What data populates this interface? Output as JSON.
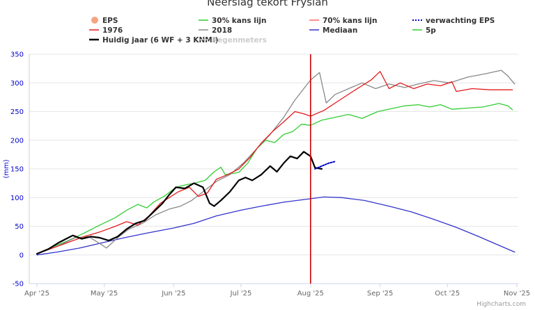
{
  "chart_data": {
    "type": "line",
    "title": "Neerslag tekort Fryslân",
    "ylabel": "(mm)",
    "xlabel": "",
    "ylim": [
      -50,
      350
    ],
    "yticks": [
      -50,
      0,
      50,
      100,
      150,
      200,
      250,
      300,
      350
    ],
    "xlim": [
      "2025-04-01",
      "2025-11-01"
    ],
    "xticks": [
      {
        "date": "2025-04-01",
        "label": "Apr '25"
      },
      {
        "date": "2025-05-01",
        "label": "May '25"
      },
      {
        "date": "2025-06-01",
        "label": "Jun '25"
      },
      {
        "date": "2025-07-01",
        "label": "Jul '25"
      },
      {
        "date": "2025-08-01",
        "label": "Aug '25"
      },
      {
        "date": "2025-09-01",
        "label": "Sep '25"
      },
      {
        "date": "2025-10-01",
        "label": "Oct '25"
      },
      {
        "date": "2025-11-01",
        "label": "Nov '25"
      }
    ],
    "grid": true,
    "legend_position": "top",
    "today_marker": {
      "date": "2025-08-01",
      "color": "#cc0000"
    },
    "series": [
      {
        "name": "EPS",
        "color": "#f4a582",
        "style": "marker",
        "values": []
      },
      {
        "name": "30% kans lijn",
        "color": "#33cc33",
        "style": "solid",
        "values": [
          [
            "2025-04-01",
            2
          ],
          [
            "2025-04-08",
            14
          ],
          [
            "2025-04-15",
            25
          ],
          [
            "2025-04-22",
            38
          ],
          [
            "2025-04-29",
            52
          ],
          [
            "2025-05-06",
            65
          ],
          [
            "2025-05-11",
            78
          ],
          [
            "2025-05-16",
            88
          ],
          [
            "2025-05-20",
            82
          ],
          [
            "2025-05-23",
            92
          ],
          [
            "2025-05-28",
            103
          ],
          [
            "2025-06-02",
            118
          ],
          [
            "2025-06-06",
            122
          ],
          [
            "2025-06-10",
            125
          ],
          [
            "2025-06-15",
            130
          ],
          [
            "2025-06-19",
            145
          ],
          [
            "2025-06-22",
            153
          ],
          [
            "2025-06-24",
            140
          ],
          [
            "2025-06-30",
            144
          ],
          [
            "2025-07-04",
            160
          ],
          [
            "2025-07-08",
            185
          ],
          [
            "2025-07-12",
            200
          ],
          [
            "2025-07-16",
            196
          ],
          [
            "2025-07-20",
            210
          ],
          [
            "2025-07-24",
            215
          ],
          [
            "2025-07-28",
            228
          ],
          [
            "2025-08-01",
            226
          ],
          [
            "2025-08-06",
            235
          ],
          [
            "2025-08-12",
            240
          ],
          [
            "2025-08-18",
            245
          ],
          [
            "2025-08-24",
            238
          ],
          [
            "2025-08-31",
            250
          ],
          [
            "2025-09-06",
            255
          ],
          [
            "2025-09-12",
            260
          ],
          [
            "2025-09-18",
            262
          ],
          [
            "2025-09-23",
            258
          ],
          [
            "2025-09-28",
            262
          ],
          [
            "2025-10-03",
            254
          ],
          [
            "2025-10-10",
            256
          ],
          [
            "2025-10-17",
            258
          ],
          [
            "2025-10-24",
            264
          ],
          [
            "2025-10-28",
            260
          ],
          [
            "2025-10-30",
            253
          ]
        ]
      },
      {
        "name": "70% kans lijn",
        "color": "#ff6666",
        "style": "solid",
        "values": []
      },
      {
        "name": "verwachting EPS",
        "color": "#0000cc",
        "style": "dotted",
        "values": [
          [
            "2025-08-03",
            150
          ],
          [
            "2025-08-06",
            155
          ],
          [
            "2025-08-09",
            160
          ],
          [
            "2025-08-12",
            163
          ]
        ]
      },
      {
        "name": "1976",
        "color": "#e41a1c",
        "style": "solid",
        "values": [
          [
            "2025-04-01",
            2
          ],
          [
            "2025-04-08",
            12
          ],
          [
            "2025-04-15",
            22
          ],
          [
            "2025-04-22",
            32
          ],
          [
            "2025-04-29",
            40
          ],
          [
            "2025-05-06",
            50
          ],
          [
            "2025-05-11",
            58
          ],
          [
            "2025-05-16",
            52
          ],
          [
            "2025-05-21",
            68
          ],
          [
            "2025-05-26",
            90
          ],
          [
            "2025-05-30",
            100
          ],
          [
            "2025-06-03",
            110
          ],
          [
            "2025-06-08",
            118
          ],
          [
            "2025-06-12",
            102
          ],
          [
            "2025-06-16",
            108
          ],
          [
            "2025-06-20",
            132
          ],
          [
            "2025-06-25",
            140
          ],
          [
            "2025-06-30",
            150
          ],
          [
            "2025-07-05",
            170
          ],
          [
            "2025-07-10",
            195
          ],
          [
            "2025-07-15",
            215
          ],
          [
            "2025-07-20",
            232
          ],
          [
            "2025-07-25",
            250
          ],
          [
            "2025-07-29",
            246
          ],
          [
            "2025-08-01",
            242
          ],
          [
            "2025-08-07",
            252
          ],
          [
            "2025-08-14",
            270
          ],
          [
            "2025-08-21",
            288
          ],
          [
            "2025-08-28",
            305
          ],
          [
            "2025-09-01",
            320
          ],
          [
            "2025-09-05",
            290
          ],
          [
            "2025-09-10",
            300
          ],
          [
            "2025-09-16",
            290
          ],
          [
            "2025-09-22",
            298
          ],
          [
            "2025-09-28",
            295
          ],
          [
            "2025-10-03",
            302
          ],
          [
            "2025-10-05",
            285
          ],
          [
            "2025-10-12",
            290
          ],
          [
            "2025-10-20",
            288
          ],
          [
            "2025-10-30",
            288
          ]
        ]
      },
      {
        "name": "2018",
        "color": "#888888",
        "style": "solid",
        "values": [
          [
            "2025-04-01",
            2
          ],
          [
            "2025-04-10",
            15
          ],
          [
            "2025-04-18",
            30
          ],
          [
            "2025-04-24",
            32
          ],
          [
            "2025-04-29",
            20
          ],
          [
            "2025-05-02",
            12
          ],
          [
            "2025-05-07",
            30
          ],
          [
            "2025-05-12",
            45
          ],
          [
            "2025-05-18",
            55
          ],
          [
            "2025-05-24",
            70
          ],
          [
            "2025-05-30",
            80
          ],
          [
            "2025-06-04",
            85
          ],
          [
            "2025-06-09",
            95
          ],
          [
            "2025-06-14",
            110
          ],
          [
            "2025-06-20",
            128
          ],
          [
            "2025-06-26",
            140
          ],
          [
            "2025-07-02",
            160
          ],
          [
            "2025-07-08",
            185
          ],
          [
            "2025-07-14",
            210
          ],
          [
            "2025-07-20",
            240
          ],
          [
            "2025-07-25",
            270
          ],
          [
            "2025-07-29",
            290
          ],
          [
            "2025-08-01",
            305
          ],
          [
            "2025-08-05",
            318
          ],
          [
            "2025-08-08",
            265
          ],
          [
            "2025-08-12",
            280
          ],
          [
            "2025-08-18",
            290
          ],
          [
            "2025-08-24",
            300
          ],
          [
            "2025-08-30",
            290
          ],
          [
            "2025-09-05",
            298
          ],
          [
            "2025-09-12",
            292
          ],
          [
            "2025-09-18",
            298
          ],
          [
            "2025-09-25",
            304
          ],
          [
            "2025-10-02",
            300
          ],
          [
            "2025-10-10",
            310
          ],
          [
            "2025-10-18",
            316
          ],
          [
            "2025-10-25",
            322
          ],
          [
            "2025-10-28",
            312
          ],
          [
            "2025-10-31",
            298
          ]
        ]
      },
      {
        "name": "Mediaan",
        "color": "#3333cc",
        "style": "solid",
        "values": [
          [
            "2025-04-01",
            0
          ],
          [
            "2025-04-10",
            5
          ],
          [
            "2025-04-20",
            12
          ],
          [
            "2025-05-01",
            22
          ],
          [
            "2025-05-10",
            30
          ],
          [
            "2025-05-20",
            38
          ],
          [
            "2025-06-01",
            47
          ],
          [
            "2025-06-10",
            55
          ],
          [
            "2025-06-20",
            68
          ],
          [
            "2025-07-01",
            78
          ],
          [
            "2025-07-10",
            85
          ],
          [
            "2025-07-20",
            92
          ],
          [
            "2025-08-01",
            98
          ],
          [
            "2025-08-07",
            101
          ],
          [
            "2025-08-15",
            100
          ],
          [
            "2025-08-25",
            95
          ],
          [
            "2025-09-05",
            85
          ],
          [
            "2025-09-15",
            75
          ],
          [
            "2025-09-25",
            62
          ],
          [
            "2025-10-05",
            48
          ],
          [
            "2025-10-15",
            32
          ],
          [
            "2025-10-25",
            15
          ],
          [
            "2025-10-31",
            5
          ]
        ]
      },
      {
        "name": "5p",
        "color": "#33cc33",
        "style": "solid",
        "values": []
      },
      {
        "name": "Huidig jaar (6 WF + 3 KNMI)",
        "color": "#000000",
        "style": "bold",
        "values": [
          [
            "2025-04-01",
            2
          ],
          [
            "2025-04-06",
            10
          ],
          [
            "2025-04-11",
            22
          ],
          [
            "2025-04-15",
            30
          ],
          [
            "2025-04-17",
            34
          ],
          [
            "2025-04-21",
            28
          ],
          [
            "2025-04-25",
            32
          ],
          [
            "2025-04-29",
            30
          ],
          [
            "2025-05-03",
            25
          ],
          [
            "2025-05-07",
            32
          ],
          [
            "2025-05-11",
            45
          ],
          [
            "2025-05-15",
            55
          ],
          [
            "2025-05-19",
            60
          ],
          [
            "2025-05-23",
            75
          ],
          [
            "2025-05-27",
            90
          ],
          [
            "2025-05-30",
            105
          ],
          [
            "2025-06-02",
            118
          ],
          [
            "2025-06-06",
            116
          ],
          [
            "2025-06-10",
            125
          ],
          [
            "2025-06-14",
            118
          ],
          [
            "2025-06-17",
            90
          ],
          [
            "2025-06-19",
            85
          ],
          [
            "2025-06-22",
            95
          ],
          [
            "2025-06-26",
            110
          ],
          [
            "2025-06-30",
            130
          ],
          [
            "2025-07-03",
            135
          ],
          [
            "2025-07-06",
            130
          ],
          [
            "2025-07-10",
            140
          ],
          [
            "2025-07-14",
            155
          ],
          [
            "2025-07-17",
            145
          ],
          [
            "2025-07-20",
            160
          ],
          [
            "2025-07-23",
            172
          ],
          [
            "2025-07-26",
            168
          ],
          [
            "2025-07-29",
            180
          ],
          [
            "2025-08-01",
            172
          ],
          [
            "2025-08-03",
            152
          ],
          [
            "2025-08-06",
            150
          ]
        ]
      },
      {
        "name": "Regenmeters",
        "color": "#cccccc",
        "style": "hidden",
        "values": []
      }
    ]
  },
  "credits": "Highcharts.com"
}
